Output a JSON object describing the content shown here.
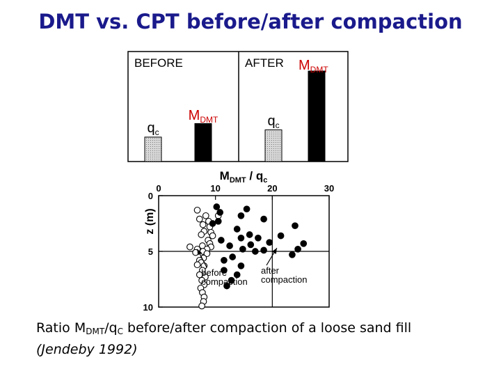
{
  "title": "DMT vs. CPT before/after compaction",
  "colors": {
    "title": "#1a1a8c",
    "red": "#cc0000",
    "bar_black": "#000000",
    "bar_hatched": "#c8c8c8"
  },
  "chart_data": [
    {
      "type": "bar",
      "panels": [
        {
          "label": "BEFORE",
          "bars": [
            {
              "name_main": "q",
              "name_sub": "c",
              "name_color": "black",
              "fill": "hatched",
              "relative_height": 0.27
            },
            {
              "name_main": "M",
              "name_sub": "DMT",
              "name_color": "red",
              "fill": "black",
              "relative_height": 0.42
            }
          ]
        },
        {
          "label": "AFTER",
          "bars": [
            {
              "name_main": "q",
              "name_sub": "c",
              "name_color": "black",
              "fill": "hatched",
              "relative_height": 0.35
            },
            {
              "name_main": "M",
              "name_sub": "DMT",
              "name_color": "red",
              "fill": "black",
              "relative_height": 1.0
            }
          ]
        }
      ]
    },
    {
      "type": "scatter",
      "xlabel_main": "M",
      "xlabel_sub": "DMT",
      "xlabel_sep": "/ q",
      "xlabel_sub2": "c",
      "ylabel": "z (m)",
      "xlim": [
        0,
        30
      ],
      "ylim": [
        0,
        10
      ],
      "y_inverted": true,
      "xticks": [
        0,
        10,
        20,
        30
      ],
      "yticks": [
        0,
        5,
        10
      ],
      "grid_x": [
        20
      ],
      "grid_y": [
        5
      ],
      "series": [
        {
          "marker": "open-circle",
          "points": [
            [
              6.8,
              1.3
            ],
            [
              8.3,
              1.8
            ],
            [
              10.5,
              1.8
            ],
            [
              7.2,
              2.1
            ],
            [
              8.8,
              2.3
            ],
            [
              7.8,
              2.6
            ],
            [
              9.0,
              2.8
            ],
            [
              8.0,
              3.2
            ],
            [
              9.2,
              3.3
            ],
            [
              7.5,
              3.5
            ],
            [
              9.5,
              3.6
            ],
            [
              8.7,
              4.0
            ],
            [
              9.0,
              4.3
            ],
            [
              7.7,
              4.5
            ],
            [
              5.5,
              4.6
            ],
            [
              9.2,
              4.6
            ],
            [
              8.5,
              4.8
            ],
            [
              6.8,
              4.8
            ],
            [
              7.8,
              5.0
            ],
            [
              6.5,
              5.1
            ],
            [
              8.5,
              5.2
            ],
            [
              7.9,
              5.6
            ],
            [
              7.2,
              5.8
            ],
            [
              7.5,
              6.0
            ],
            [
              6.8,
              6.2
            ],
            [
              8.0,
              6.3
            ],
            [
              7.7,
              6.7
            ],
            [
              7.2,
              7.1
            ],
            [
              8.2,
              7.3
            ],
            [
              7.6,
              7.6
            ],
            [
              8.0,
              8.0
            ],
            [
              7.4,
              8.3
            ],
            [
              7.7,
              8.7
            ],
            [
              8.0,
              9.1
            ],
            [
              7.9,
              9.5
            ],
            [
              7.6,
              9.9
            ]
          ]
        },
        {
          "marker": "filled-circle",
          "points": [
            [
              10.2,
              1.0
            ],
            [
              15.5,
              1.2
            ],
            [
              10.8,
              1.5
            ],
            [
              14.5,
              1.8
            ],
            [
              10.5,
              2.3
            ],
            [
              9.5,
              2.5
            ],
            [
              18.5,
              2.1
            ],
            [
              24.0,
              2.7
            ],
            [
              13.8,
              3.0
            ],
            [
              16.0,
              3.5
            ],
            [
              21.5,
              3.6
            ],
            [
              14.5,
              3.8
            ],
            [
              11.0,
              4.0
            ],
            [
              17.5,
              3.8
            ],
            [
              19.5,
              4.2
            ],
            [
              25.5,
              4.3
            ],
            [
              16.2,
              4.4
            ],
            [
              12.5,
              4.5
            ],
            [
              14.8,
              4.8
            ],
            [
              18.5,
              4.9
            ],
            [
              24.5,
              4.8
            ],
            [
              17.0,
              5.0
            ],
            [
              23.5,
              5.3
            ],
            [
              11.5,
              5.8
            ],
            [
              13.0,
              5.5
            ],
            [
              14.5,
              6.3
            ],
            [
              11.5,
              6.7
            ],
            [
              13.8,
              7.1
            ],
            [
              12.8,
              7.6
            ],
            [
              12.0,
              8.1
            ]
          ]
        }
      ],
      "annotations": [
        {
          "lines": [
            "before",
            "compaction"
          ],
          "x": 7.5,
          "y": 7.2,
          "arrow_to": [
            6.8,
            4.8
          ]
        },
        {
          "lines": [
            "after",
            "compaction"
          ],
          "x": 18.0,
          "y": 7.0,
          "arrow_to": [
            20.8,
            4.7
          ]
        }
      ]
    }
  ],
  "caption": {
    "line1_pre": "Ratio M",
    "line1_sub1": "DMT",
    "line1_mid": "/q",
    "line1_sub2": "C",
    "line1_post": " before/after compaction of a loose sand fill",
    "line2": "(Jendeby 1992)"
  }
}
